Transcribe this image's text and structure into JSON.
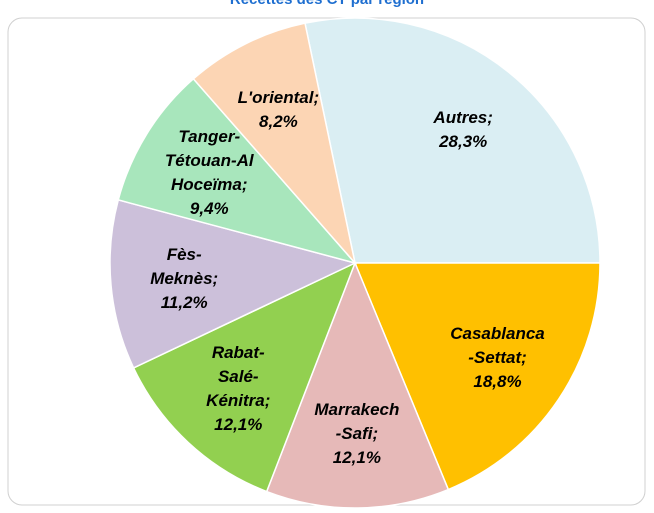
{
  "chart_data": {
    "type": "pie",
    "title": "Recettes des CT par région",
    "labels": [
      "Autres;\n28,3%",
      "Casablanca\n-Settat;\n18,8%",
      "Marrakech\n-Safi;\n12,1%",
      "Rabat-\nSalé-\nKénitra;\n12,1%",
      "Fès-\nMeknès;\n11,2%",
      "Tanger-\nTétouan-Al\nHoceïma;\n9,4%",
      "L'oriental;\n8,2%"
    ],
    "values": [
      28.3,
      18.8,
      12.1,
      12.1,
      11.2,
      9.4,
      8.2
    ],
    "colors": [
      "#daeef3",
      "#ffc000",
      "#e6b9b8",
      "#92d050",
      "#ccc0da",
      "#a8e6bc",
      "#fcd5b4"
    ]
  }
}
